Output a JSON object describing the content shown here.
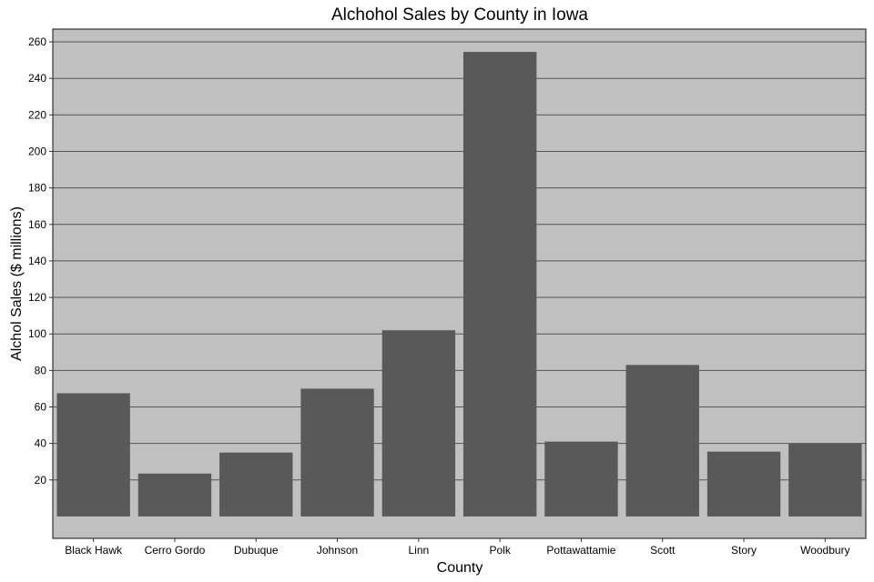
{
  "chart_data": {
    "type": "bar",
    "title": "Alchohol Sales by County in Iowa",
    "xlabel": "County",
    "ylabel": "Alchol Sales ($ millions)",
    "categories": [
      "Black Hawk",
      "Cerro Gordo",
      "Dubuque",
      "Johnson",
      "Linn",
      "Polk",
      "Pottawattamie",
      "Scott",
      "Story",
      "Woodbury"
    ],
    "values": [
      67.5,
      23.5,
      35,
      70,
      102,
      254.5,
      41,
      83,
      35.5,
      40
    ],
    "y_ticks": [
      20,
      40,
      60,
      80,
      100,
      120,
      140,
      160,
      180,
      200,
      220,
      240,
      260
    ],
    "ylim": [
      -12,
      267
    ],
    "grid": true,
    "colors": {
      "bar": "#595959",
      "panel": "#c0c0c0",
      "grid": "#555555",
      "border": "#333333"
    }
  }
}
